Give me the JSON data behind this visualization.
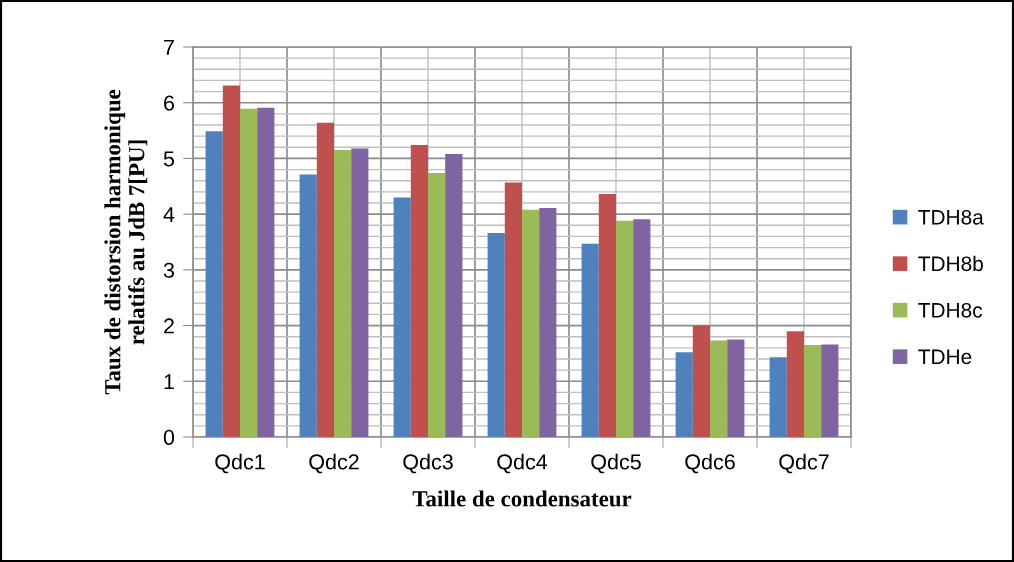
{
  "chart_data": {
    "type": "bar",
    "xlabel": "Taille de condensateur",
    "ylabel": "Taux de distorsion harmonique\nrelatifs au JdB 7[PU]",
    "categories": [
      "Qdc1",
      "Qdc2",
      "Qdc3",
      "Qdc4",
      "Qdc5",
      "Qdc6",
      "Qdc7"
    ],
    "series": [
      {
        "name": "TDH8a",
        "color": "#4f81bd",
        "values": [
          5.49,
          4.71,
          4.3,
          3.66,
          3.47,
          1.52,
          1.43
        ]
      },
      {
        "name": "TDH8b",
        "color": "#c0504d",
        "values": [
          6.31,
          5.64,
          5.24,
          4.57,
          4.36,
          2.0,
          1.9
        ]
      },
      {
        "name": "TDH8c",
        "color": "#9bbb59",
        "values": [
          5.89,
          5.15,
          4.74,
          4.08,
          3.88,
          1.73,
          1.65
        ]
      },
      {
        "name": "TDHe",
        "color": "#8064a2",
        "values": [
          5.91,
          5.18,
          5.08,
          4.11,
          3.91,
          1.75,
          1.66
        ]
      }
    ],
    "ylim": [
      0,
      7
    ],
    "yticks": [
      0,
      1,
      2,
      3,
      4,
      5,
      6,
      7
    ],
    "grid": true,
    "legend": "right"
  }
}
